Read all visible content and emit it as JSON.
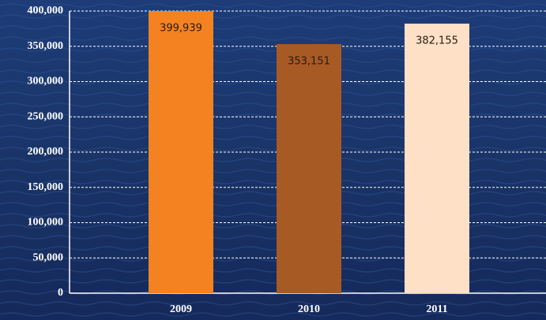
{
  "chart_data": {
    "type": "bar",
    "categories": [
      "2009",
      "2010",
      "2011"
    ],
    "values": [
      399939,
      353151,
      382155
    ],
    "value_labels": [
      "399,939",
      "353,151",
      "382,155"
    ],
    "colors": [
      "#f58220",
      "#a85a25",
      "#fde0c6"
    ],
    "ylim": [
      0,
      400000
    ],
    "yticks": [
      0,
      {
        "value": 50000,
        "label": "50,000"
      },
      {
        "value": 100000,
        "label": "100,000"
      },
      {
        "value": 150000,
        "label": "150,000"
      },
      {
        "value": 200000,
        "label": "200,000"
      },
      {
        "value": 250000,
        "label": "250,000"
      },
      {
        "value": 300000,
        "label": "300,000"
      },
      {
        "value": 350000,
        "label": "350,000"
      },
      {
        "value": 400000,
        "label": "400,000"
      }
    ],
    "grid": true
  }
}
